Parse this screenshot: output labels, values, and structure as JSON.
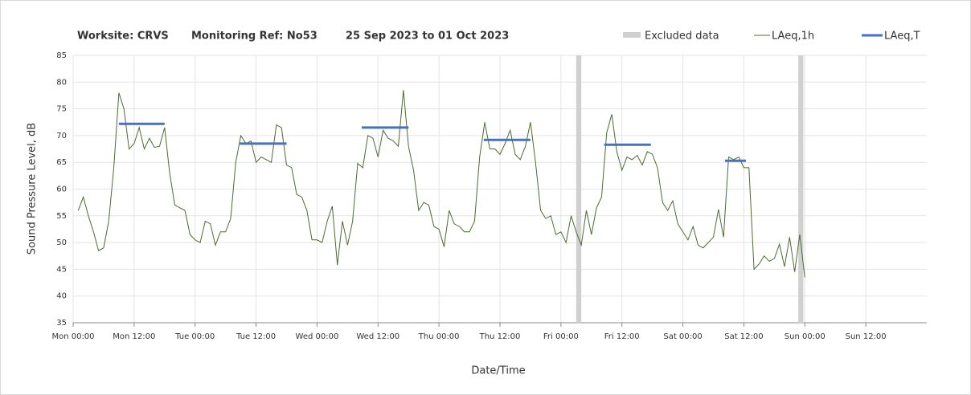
{
  "chart_data": {
    "type": "line",
    "title_parts": [
      "Worksite: CRVS",
      "Monitoring Ref: No53",
      "25 Sep 2023 to 01 Oct 2023"
    ],
    "xlabel": "Date/Time",
    "ylabel": "Sound Pressure Level, dB",
    "xlim": [
      0,
      168
    ],
    "ylim": [
      35,
      85
    ],
    "xticks": [
      {
        "value": 0,
        "label": "Mon 00:00"
      },
      {
        "value": 12,
        "label": "Mon 12:00"
      },
      {
        "value": 24,
        "label": "Tue 00:00"
      },
      {
        "value": 36,
        "label": "Tue 12:00"
      },
      {
        "value": 48,
        "label": "Wed 00:00"
      },
      {
        "value": 60,
        "label": "Wed 12:00"
      },
      {
        "value": 72,
        "label": "Thu 00:00"
      },
      {
        "value": 84,
        "label": "Thu 12:00"
      },
      {
        "value": 96,
        "label": "Fri 00:00"
      },
      {
        "value": 108,
        "label": "Fri 12:00"
      },
      {
        "value": 120,
        "label": "Sat 00:00"
      },
      {
        "value": 132,
        "label": "Sat 12:00"
      },
      {
        "value": 144,
        "label": "Sun 00:00"
      },
      {
        "value": 156,
        "label": "Sun 12:00"
      }
    ],
    "yticks": [
      35,
      40,
      45,
      50,
      55,
      60,
      65,
      70,
      75,
      80,
      85
    ],
    "grid": true,
    "excluded": {
      "name": "Excluded data",
      "color": "#d0d0d0",
      "ranges": [
        [
          99,
          100
        ],
        [
          142.7,
          143.7
        ]
      ]
    },
    "series": [
      {
        "name": "LAeq,1h",
        "color": "#4a6b32",
        "x": [
          1,
          2,
          3,
          4,
          5,
          6,
          7,
          8,
          9,
          10,
          11,
          12,
          13,
          14,
          15,
          16,
          17,
          18,
          19,
          20,
          21,
          22,
          23,
          24,
          25,
          26,
          27,
          28,
          29,
          30,
          31,
          32,
          33,
          34,
          35,
          36,
          37,
          38,
          39,
          40,
          41,
          42,
          43,
          44,
          45,
          46,
          47,
          48,
          49,
          50,
          51,
          52,
          53,
          54,
          55,
          56,
          57,
          58,
          59,
          60,
          61,
          62,
          63,
          64,
          65,
          66,
          67,
          68,
          69,
          70,
          71,
          72,
          73,
          74,
          75,
          76,
          77,
          78,
          79,
          80,
          81,
          82,
          83,
          84,
          85,
          86,
          87,
          88,
          89,
          90,
          91,
          92,
          93,
          94,
          95,
          96,
          97,
          98,
          99,
          100,
          101,
          102,
          103,
          104,
          105,
          106,
          107,
          108,
          109,
          110,
          111,
          112,
          113,
          114,
          115,
          116,
          117,
          118,
          119,
          120,
          121,
          122,
          123,
          124,
          125,
          126,
          127,
          128,
          129,
          130,
          131,
          132,
          133,
          134,
          135,
          136,
          137,
          138,
          139,
          140,
          141,
          142,
          143,
          144
        ],
        "values": [
          56,
          58.5,
          55,
          52,
          48.5,
          49,
          54,
          64,
          78,
          75,
          67.5,
          68.5,
          71.5,
          67.5,
          69.5,
          67.8,
          68,
          71.5,
          63,
          57,
          56.5,
          56,
          51.5,
          50.5,
          50,
          54,
          53.5,
          49.5,
          52,
          52,
          54.5,
          65,
          70,
          68.5,
          69,
          65,
          66,
          65.5,
          65,
          72,
          71.5,
          64.5,
          64,
          59,
          58.5,
          56,
          50.5,
          50.5,
          50,
          54,
          56.8,
          45.8,
          54,
          49.5,
          54,
          64.8,
          64,
          70,
          69.5,
          66,
          71,
          69.5,
          69,
          68,
          78.5,
          68,
          63.5,
          56,
          57.5,
          57,
          53,
          52.5,
          49.2,
          56,
          53.5,
          53,
          52,
          52,
          54,
          66,
          72.5,
          67.5,
          67.5,
          66.5,
          68.5,
          71,
          66.5,
          65.5,
          68,
          72.5,
          65,
          56,
          54.5,
          55,
          51.5,
          52,
          50,
          55,
          52,
          49.5,
          56,
          51.5,
          56.5,
          58.5,
          70.5,
          74,
          67,
          63.5,
          66,
          65.5,
          66.3,
          64.5,
          67,
          66.5,
          64,
          57.5,
          56,
          57.8,
          53.5,
          52,
          50.5,
          53,
          49.5,
          49,
          50,
          51,
          56.2,
          51,
          66,
          65.5,
          66,
          64,
          64,
          45,
          46,
          47.5,
          46.5,
          47,
          49.7,
          45.5,
          51,
          44.5,
          51.5,
          43.5
        ]
      },
      {
        "name": "LAeq,T",
        "color": "#4472c4",
        "periods": [
          {
            "x": [
              9,
              18
            ],
            "value": 72.2
          },
          {
            "x": [
              32.8,
              42
            ],
            "value": 68.5
          },
          {
            "x": [
              56.8,
              66
            ],
            "value": 71.5
          },
          {
            "x": [
              80.8,
              90
            ],
            "value": 69.2
          },
          {
            "x": [
              104.5,
              113.7
            ],
            "value": 68.3
          },
          {
            "x": [
              128.3,
              132.4
            ],
            "value": 65.3
          }
        ]
      }
    ]
  }
}
